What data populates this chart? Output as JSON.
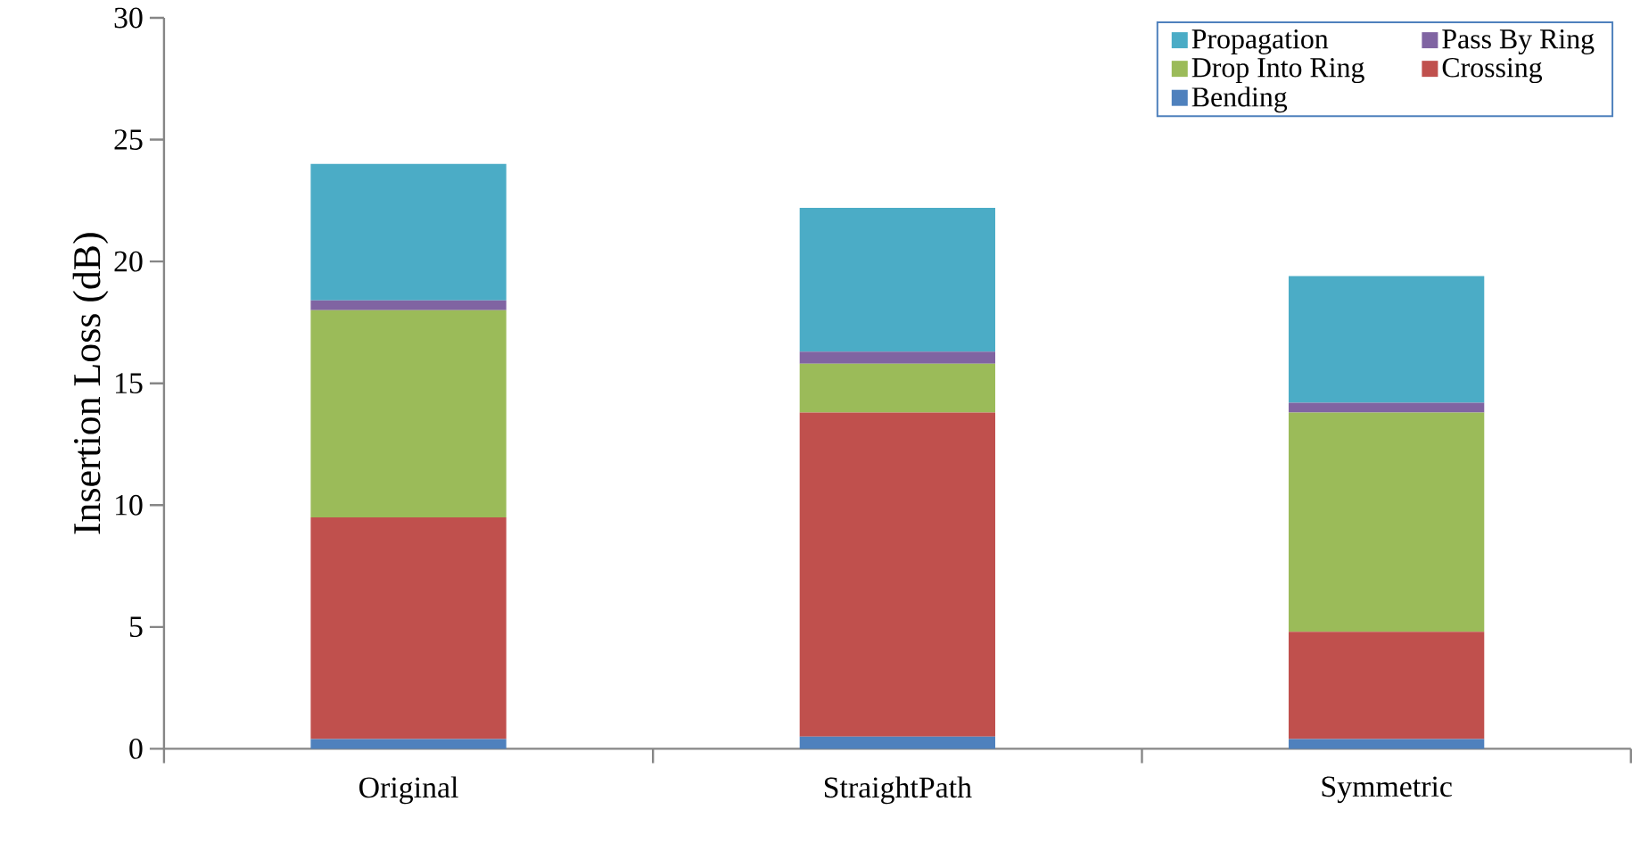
{
  "chart_data": {
    "type": "bar",
    "stacked": true,
    "ylabel": "Insertion Loss (dB)",
    "categories": [
      "Original",
      "StraightPath",
      "Symmetric"
    ],
    "series": [
      {
        "name": "Bending",
        "color": "#4f81bd",
        "values": [
          0.4,
          0.5,
          0.4
        ]
      },
      {
        "name": "Crossing",
        "color": "#c0504d",
        "values": [
          9.1,
          13.3,
          4.4
        ]
      },
      {
        "name": "Drop Into Ring",
        "color": "#9bbb59",
        "values": [
          8.5,
          2.0,
          9.0
        ]
      },
      {
        "name": "Pass By Ring",
        "color": "#8064a2",
        "values": [
          0.4,
          0.5,
          0.4
        ]
      },
      {
        "name": "Propagation",
        "color": "#4bacc6",
        "values": [
          5.6,
          5.9,
          5.2
        ]
      }
    ],
    "ylim": [
      0,
      30
    ],
    "yticks": [
      0,
      5,
      10,
      15,
      20,
      25,
      30
    ],
    "grid": false,
    "legend": "top right"
  }
}
